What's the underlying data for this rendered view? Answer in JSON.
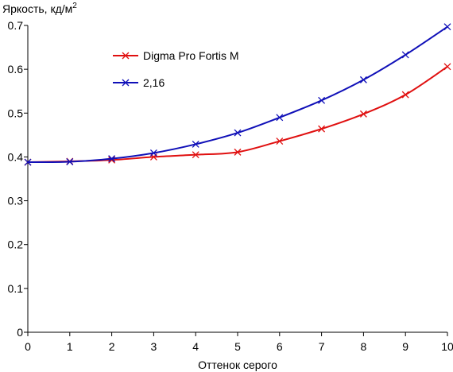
{
  "chart_data": {
    "type": "line",
    "title": "",
    "xlabel": "Оттенок серого",
    "ylabel_main": "Яркость, кд/м",
    "ylabel_sup": "2",
    "xlim": [
      0,
      10
    ],
    "ylim": [
      0,
      0.7
    ],
    "x_ticks": [
      0,
      1,
      2,
      3,
      4,
      5,
      6,
      7,
      8,
      9,
      10
    ],
    "y_ticks": [
      0,
      0.1,
      0.2,
      0.3,
      0.4,
      0.5,
      0.6,
      0.7
    ],
    "y_tick_labels": [
      "0",
      "0.1",
      "0.2",
      "0.3",
      "0.4",
      "0.5",
      "0.6",
      "0.7"
    ],
    "grid": false,
    "legend_position": "upper-left",
    "x": [
      0,
      1,
      2,
      3,
      4,
      5,
      6,
      7,
      8,
      9,
      10
    ],
    "series": [
      {
        "name": "Digma Pro Fortis M",
        "color": "#e01010",
        "values": [
          0.388,
          0.39,
          0.393,
          0.4,
          0.405,
          0.411,
          0.436,
          0.464,
          0.498,
          0.542,
          0.606
        ]
      },
      {
        "name": "2,16",
        "color": "#1010b8",
        "values": [
          0.388,
          0.389,
          0.396,
          0.409,
          0.429,
          0.455,
          0.49,
          0.529,
          0.576,
          0.633,
          0.697
        ]
      }
    ]
  }
}
